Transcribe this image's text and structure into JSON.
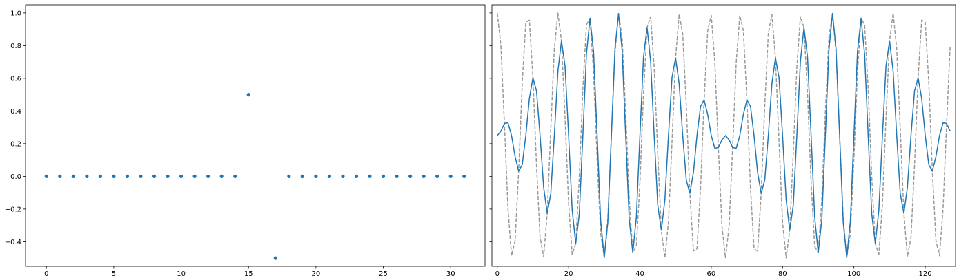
{
  "chart_data": [
    {
      "type": "scatter",
      "title": "",
      "xlabel": "",
      "ylabel": "",
      "xlim": [
        -1.55,
        32.55
      ],
      "ylim": [
        -0.55,
        1.05
      ],
      "xticks": [
        0,
        5,
        10,
        15,
        20,
        25,
        30
      ],
      "yticks": [
        -0.4,
        -0.2,
        0.0,
        0.2,
        0.4,
        0.6,
        0.8,
        1.0
      ],
      "xtick_labels": [
        "0",
        "5",
        "10",
        "15",
        "20",
        "25",
        "30"
      ],
      "ytick_labels": [
        "−0.4",
        "−0.2",
        "0.0",
        "0.2",
        "0.4",
        "0.6",
        "0.8",
        "1.0"
      ],
      "grid": false,
      "color": "#1f77b4",
      "x": [
        0,
        1,
        2,
        3,
        4,
        5,
        6,
        7,
        8,
        9,
        10,
        11,
        12,
        13,
        14,
        15,
        16,
        17,
        18,
        19,
        20,
        21,
        22,
        23,
        24,
        25,
        26,
        27,
        28,
        29,
        30,
        31
      ],
      "values": [
        0,
        0,
        0,
        0,
        0,
        0,
        0,
        0,
        0,
        0,
        0,
        0,
        0,
        0,
        0,
        0.5,
        null,
        -0.5,
        0,
        0,
        0,
        0,
        0,
        0,
        0,
        0,
        0,
        0,
        0,
        0,
        0,
        0
      ]
    },
    {
      "type": "line",
      "title": "",
      "xlabel": "",
      "ylabel": "",
      "xlim": [
        -1.5,
        128.5
      ],
      "ylim": [
        -0.55,
        1.05
      ],
      "xticks": [
        0,
        20,
        40,
        60,
        80,
        100,
        120
      ],
      "xtick_labels": [
        "0",
        "20",
        "40",
        "60",
        "80",
        "100",
        "120"
      ],
      "yticks": [
        -0.4,
        -0.2,
        0.0,
        0.2,
        0.4,
        0.6,
        0.8,
        1.0
      ],
      "ytick_labels_shown": false,
      "grid": false,
      "series": [
        {
          "style": "dashed",
          "color": "#999999",
          "n": 128,
          "cos_frequency_cycles": 15,
          "amplitude": 0.75,
          "offset": 0.25
        },
        {
          "style": "solid",
          "color": "#1f77b4",
          "n": 128,
          "components": [
            {
              "cycles": 15,
              "amplitude": 0.375
            },
            {
              "cycles": 17,
              "amplitude": -0.375
            }
          ],
          "offset": 0.25
        }
      ]
    }
  ]
}
